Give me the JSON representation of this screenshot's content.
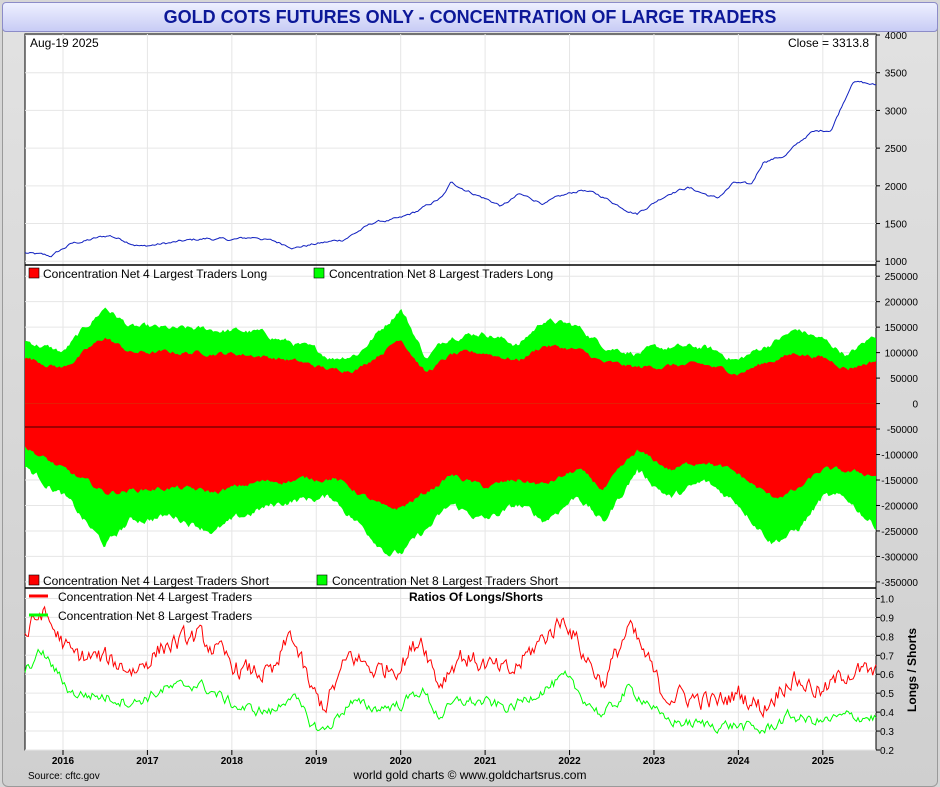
{
  "page_title": "GOLD COTS FUTURES ONLY - CONCENTRATION OF LARGE TRADERS",
  "source": "Source: cftc.gov",
  "credit": "world gold charts © www.goldchartsrus.com",
  "chart_data": [
    {
      "type": "line",
      "id": "price",
      "date_label": "Aug-19  2025",
      "close_label": "Close = 3313.8",
      "ylim": [
        950,
        4000
      ],
      "ticks": [
        1000,
        1500,
        2000,
        2500,
        3000,
        3500,
        4000
      ],
      "color": "#1020c0",
      "keypoints": [
        [
          2015.55,
          1110
        ],
        [
          2015.85,
          1060
        ],
        [
          2016.1,
          1230
        ],
        [
          2016.55,
          1340
        ],
        [
          2016.95,
          1200
        ],
        [
          2017.45,
          1265
        ],
        [
          2017.7,
          1300
        ],
        [
          2017.98,
          1280
        ],
        [
          2018.3,
          1320
        ],
        [
          2018.6,
          1230
        ],
        [
          2018.75,
          1190
        ],
        [
          2019.3,
          1280
        ],
        [
          2019.7,
          1520
        ],
        [
          2020.0,
          1560
        ],
        [
          2020.2,
          1660
        ],
        [
          2020.5,
          1850
        ],
        [
          2020.6,
          2040
        ],
        [
          2021.2,
          1730
        ],
        [
          2021.4,
          1880
        ],
        [
          2021.7,
          1770
        ],
        [
          2022.15,
          1950
        ],
        [
          2022.4,
          1850
        ],
        [
          2022.6,
          1730
        ],
        [
          2022.8,
          1640
        ],
        [
          2023.2,
          1920
        ],
        [
          2023.4,
          1980
        ],
        [
          2023.75,
          1830
        ],
        [
          2023.95,
          2040
        ],
        [
          2024.15,
          2000
        ],
        [
          2024.3,
          2330
        ],
        [
          2024.55,
          2400
        ],
        [
          2024.85,
          2700
        ],
        [
          2025.1,
          2750
        ],
        [
          2025.3,
          3250
        ],
        [
          2025.35,
          3400
        ],
        [
          2025.63,
          3330
        ]
      ]
    },
    {
      "type": "area",
      "id": "concentration",
      "ylim": [
        -360000,
        270000
      ],
      "ticks": [
        250000,
        200000,
        150000,
        100000,
        50000,
        0,
        -50000,
        -100000,
        -150000,
        -200000,
        -250000,
        -300000,
        -350000
      ],
      "legend_top": [
        "Concentration Net 4 Largest Traders Long",
        "Concentration Net 8 Largest Traders Long"
      ],
      "legend_bottom": [
        "Concentration Net 4 Largest Traders Short",
        "Concentration Net 8 Largest Traders Short"
      ],
      "colors": {
        "net4": "#ff0000",
        "net8": "#00ff00"
      },
      "series": [
        {
          "name": "Net 4 Long",
          "keypoints": [
            [
              2015.55,
              90000
            ],
            [
              2016.0,
              70000
            ],
            [
              2016.5,
              130000
            ],
            [
              2016.8,
              100000
            ],
            [
              2017.3,
              100000
            ],
            [
              2017.8,
              100000
            ],
            [
              2018.3,
              95000
            ],
            [
              2018.7,
              85000
            ],
            [
              2019.2,
              65000
            ],
            [
              2019.5,
              70000
            ],
            [
              2019.85,
              110000
            ],
            [
              2020.0,
              130000
            ],
            [
              2020.3,
              60000
            ],
            [
              2020.6,
              95000
            ],
            [
              2021.0,
              100000
            ],
            [
              2021.4,
              85000
            ],
            [
              2021.7,
              115000
            ],
            [
              2022.1,
              105000
            ],
            [
              2022.4,
              80000
            ],
            [
              2022.8,
              70000
            ],
            [
              2023.2,
              75000
            ],
            [
              2023.6,
              75000
            ],
            [
              2024.0,
              60000
            ],
            [
              2024.4,
              85000
            ],
            [
              2024.7,
              100000
            ],
            [
              2025.0,
              90000
            ],
            [
              2025.3,
              70000
            ],
            [
              2025.63,
              85000
            ]
          ]
        },
        {
          "name": "Net 8 Long",
          "keypoints": [
            [
              2015.55,
              125000
            ],
            [
              2016.0,
              100000
            ],
            [
              2016.5,
              190000
            ],
            [
              2016.8,
              150000
            ],
            [
              2017.3,
              145000
            ],
            [
              2017.8,
              145000
            ],
            [
              2018.3,
              140000
            ],
            [
              2018.7,
              120000
            ],
            [
              2019.2,
              90000
            ],
            [
              2019.5,
              100000
            ],
            [
              2019.85,
              160000
            ],
            [
              2020.0,
              190000
            ],
            [
              2020.3,
              90000
            ],
            [
              2020.6,
              135000
            ],
            [
              2021.0,
              140000
            ],
            [
              2021.4,
              115000
            ],
            [
              2021.7,
              165000
            ],
            [
              2022.1,
              150000
            ],
            [
              2022.4,
              115000
            ],
            [
              2022.8,
              100000
            ],
            [
              2023.2,
              110000
            ],
            [
              2023.6,
              110000
            ],
            [
              2024.0,
              85000
            ],
            [
              2024.4,
              120000
            ],
            [
              2024.7,
              145000
            ],
            [
              2025.0,
              125000
            ],
            [
              2025.3,
              95000
            ],
            [
              2025.63,
              135000
            ]
          ]
        },
        {
          "name": "Net 4 Short",
          "keypoints": [
            [
              2015.55,
              -85000
            ],
            [
              2016.0,
              -130000
            ],
            [
              2016.5,
              -175000
            ],
            [
              2016.8,
              -170000
            ],
            [
              2017.3,
              -165000
            ],
            [
              2017.8,
              -175000
            ],
            [
              2018.3,
              -155000
            ],
            [
              2018.7,
              -150000
            ],
            [
              2019.2,
              -145000
            ],
            [
              2019.5,
              -175000
            ],
            [
              2019.85,
              -210000
            ],
            [
              2020.0,
              -205000
            ],
            [
              2020.3,
              -175000
            ],
            [
              2020.6,
              -140000
            ],
            [
              2021.0,
              -165000
            ],
            [
              2021.4,
              -150000
            ],
            [
              2021.7,
              -160000
            ],
            [
              2022.1,
              -130000
            ],
            [
              2022.4,
              -170000
            ],
            [
              2022.8,
              -95000
            ],
            [
              2023.2,
              -130000
            ],
            [
              2023.6,
              -110000
            ],
            [
              2024.0,
              -140000
            ],
            [
              2024.4,
              -185000
            ],
            [
              2024.7,
              -170000
            ],
            [
              2025.0,
              -130000
            ],
            [
              2025.3,
              -135000
            ],
            [
              2025.63,
              -140000
            ]
          ]
        },
        {
          "name": "Net 8 Short",
          "keypoints": [
            [
              2015.55,
              -125000
            ],
            [
              2016.0,
              -180000
            ],
            [
              2016.5,
              -280000
            ],
            [
              2016.8,
              -230000
            ],
            [
              2017.3,
              -220000
            ],
            [
              2017.8,
              -250000
            ],
            [
              2018.3,
              -210000
            ],
            [
              2018.7,
              -190000
            ],
            [
              2019.2,
              -185000
            ],
            [
              2019.5,
              -235000
            ],
            [
              2019.85,
              -290000
            ],
            [
              2020.0,
              -295000
            ],
            [
              2020.3,
              -250000
            ],
            [
              2020.6,
              -200000
            ],
            [
              2021.0,
              -230000
            ],
            [
              2021.4,
              -200000
            ],
            [
              2021.7,
              -230000
            ],
            [
              2022.1,
              -180000
            ],
            [
              2022.4,
              -235000
            ],
            [
              2022.8,
              -130000
            ],
            [
              2023.2,
              -185000
            ],
            [
              2023.6,
              -155000
            ],
            [
              2024.0,
              -195000
            ],
            [
              2024.4,
              -270000
            ],
            [
              2024.7,
              -250000
            ],
            [
              2025.0,
              -185000
            ],
            [
              2025.3,
              -190000
            ],
            [
              2025.63,
              -240000
            ]
          ]
        }
      ]
    },
    {
      "type": "line",
      "id": "ratios",
      "title": "Ratios Of Longs/Shorts",
      "ylabel": "Longs / Shorts",
      "ylim": [
        0.2,
        1.05
      ],
      "ticks": [
        1.0,
        0.9,
        0.8,
        0.7,
        0.6,
        0.5,
        0.4,
        0.3,
        0.2
      ],
      "legend": [
        "Concentration Net 4 Largest Traders",
        "Concentration Net 8 Largest Traders"
      ],
      "series": [
        {
          "name": "Net 4",
          "color": "#ff0000",
          "keypoints": [
            [
              2015.55,
              0.8
            ],
            [
              2015.75,
              0.93
            ],
            [
              2016.1,
              0.7
            ],
            [
              2016.5,
              0.68
            ],
            [
              2016.85,
              0.62
            ],
            [
              2017.2,
              0.75
            ],
            [
              2017.6,
              0.8
            ],
            [
              2018.1,
              0.62
            ],
            [
              2018.5,
              0.6
            ],
            [
              2018.7,
              0.82
            ],
            [
              2018.95,
              0.5
            ],
            [
              2019.1,
              0.43
            ],
            [
              2019.4,
              0.7
            ],
            [
              2019.7,
              0.62
            ],
            [
              2020.0,
              0.65
            ],
            [
              2020.25,
              0.8
            ],
            [
              2020.45,
              0.55
            ],
            [
              2020.7,
              0.7
            ],
            [
              2021.0,
              0.65
            ],
            [
              2021.3,
              0.6
            ],
            [
              2021.6,
              0.75
            ],
            [
              2021.95,
              0.9
            ],
            [
              2022.15,
              0.72
            ],
            [
              2022.4,
              0.55
            ],
            [
              2022.7,
              0.85
            ],
            [
              2022.95,
              0.65
            ],
            [
              2023.1,
              0.5
            ],
            [
              2023.4,
              0.48
            ],
            [
              2023.75,
              0.45
            ],
            [
              2024.0,
              0.5
            ],
            [
              2024.3,
              0.42
            ],
            [
              2024.6,
              0.58
            ],
            [
              2024.8,
              0.55
            ],
            [
              2025.0,
              0.5
            ],
            [
              2025.3,
              0.62
            ],
            [
              2025.63,
              0.6
            ]
          ]
        },
        {
          "name": "Net 8",
          "color": "#00ff00",
          "keypoints": [
            [
              2015.55,
              0.62
            ],
            [
              2015.75,
              0.72
            ],
            [
              2016.1,
              0.5
            ],
            [
              2016.5,
              0.48
            ],
            [
              2016.85,
              0.45
            ],
            [
              2017.2,
              0.52
            ],
            [
              2017.6,
              0.55
            ],
            [
              2018.1,
              0.42
            ],
            [
              2018.5,
              0.4
            ],
            [
              2018.7,
              0.5
            ],
            [
              2018.95,
              0.33
            ],
            [
              2019.1,
              0.3
            ],
            [
              2019.4,
              0.45
            ],
            [
              2019.7,
              0.42
            ],
            [
              2020.0,
              0.44
            ],
            [
              2020.25,
              0.52
            ],
            [
              2020.45,
              0.38
            ],
            [
              2020.7,
              0.46
            ],
            [
              2021.0,
              0.45
            ],
            [
              2021.3,
              0.42
            ],
            [
              2021.6,
              0.5
            ],
            [
              2021.95,
              0.58
            ],
            [
              2022.15,
              0.48
            ],
            [
              2022.4,
              0.38
            ],
            [
              2022.7,
              0.52
            ],
            [
              2022.95,
              0.45
            ],
            [
              2023.1,
              0.36
            ],
            [
              2023.4,
              0.34
            ],
            [
              2023.75,
              0.33
            ],
            [
              2024.0,
              0.33
            ],
            [
              2024.3,
              0.3
            ],
            [
              2024.6,
              0.38
            ],
            [
              2024.8,
              0.36
            ],
            [
              2025.0,
              0.35
            ],
            [
              2025.3,
              0.38
            ],
            [
              2025.63,
              0.37
            ]
          ]
        }
      ]
    }
  ],
  "x_axis": {
    "range": [
      2015.55,
      2025.63
    ],
    "years": [
      "2016",
      "2017",
      "2018",
      "2019",
      "2020",
      "2021",
      "2022",
      "2023",
      "2024",
      "2025"
    ]
  }
}
